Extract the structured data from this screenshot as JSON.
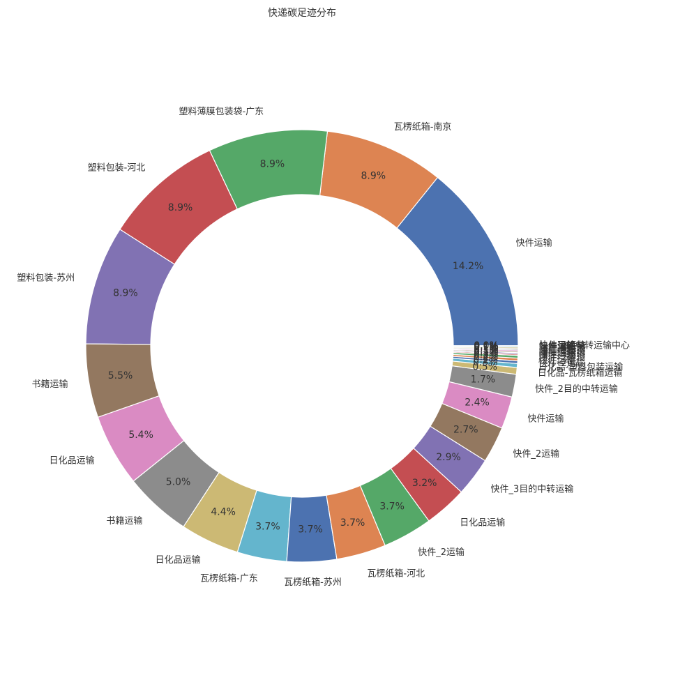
{
  "chart_data": {
    "type": "pie",
    "title": "快递碳足迹分布",
    "donut": true,
    "start_angle_deg": 0,
    "direction": "counterclockwise",
    "categories": [
      "快件运输",
      "瓦楞纸箱-南京",
      "塑料薄膜包装袋-广东",
      "塑料包装-河北",
      "塑料包装-苏州",
      "书籍运输",
      "日化品运输",
      "书籍运输",
      "日化品运输",
      "瓦楞纸箱-广东",
      "瓦楞纸箱-苏州",
      "瓦楞纸箱-河北",
      "快件_2运输",
      "日化品运输",
      "快件_3目的中转运输",
      "快件_2运输",
      "快件运输",
      "快件_2目的中转运输",
      "日化品-瓦楞纸箱运输",
      "日化品-塑料包装运输",
      "快件_2运输",
      "快件运输",
      "快件_2运输",
      "快件运输",
      "快件_2运输",
      "快件运输",
      "快件_2运输",
      "快件运输",
      "快件_2运输",
      "快件运输",
      "快件_2运输",
      "快件运输",
      "快件_2运输",
      "快件目的中转运输中心",
      "快件运输"
    ],
    "values": [
      14.2,
      8.9,
      8.9,
      8.9,
      8.9,
      5.5,
      5.4,
      5.0,
      4.4,
      3.7,
      3.7,
      3.7,
      3.7,
      3.2,
      2.9,
      2.7,
      2.4,
      1.7,
      0.5,
      0.3,
      0.2,
      0.2,
      0.2,
      0.1,
      0.1,
      0.1,
      0.1,
      0.1,
      0.1,
      0.1,
      0.0,
      0.0,
      0.0,
      0.0,
      0.0
    ],
    "labels": [
      "14.2%",
      "8.9%",
      "8.9%",
      "8.9%",
      "8.9%",
      "5.5%",
      "5.4%",
      "5.0%",
      "4.4%",
      "3.7%",
      "3.7%",
      "3.7%",
      "3.7%",
      "3.2%",
      "2.9%",
      "2.7%",
      "2.4%",
      "1.7%",
      "0.5%",
      "0.3%",
      "0.2%",
      "0.2%",
      "0.2%",
      "0.1%",
      "0.1%",
      "0.1%",
      "0.1%",
      "0.1%",
      "0.1%",
      "0.1%",
      "0.0%",
      "0.0%",
      "0.0%",
      "0.0%",
      "0.0%"
    ],
    "colors": [
      "#4c72b0",
      "#dd8452",
      "#55a868",
      "#c44e52",
      "#8172b3",
      "#937860",
      "#da8bc3",
      "#8c8c8c",
      "#ccb974",
      "#64b5cd"
    ],
    "legend": "none",
    "grid": false
  }
}
